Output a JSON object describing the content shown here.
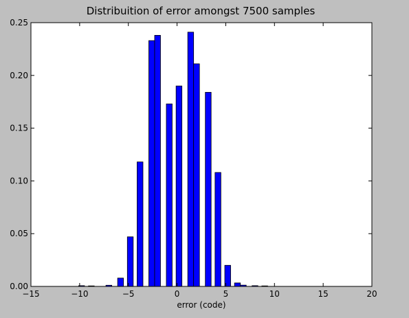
{
  "chart_data": {
    "type": "bar",
    "title": "Distribuition of error amongst 7500 samples",
    "xlabel": "error (code)",
    "ylabel": "",
    "xlim": [
      -15,
      20
    ],
    "ylim": [
      0,
      0.25
    ],
    "xticks": [
      -15,
      -10,
      -5,
      0,
      5,
      10,
      15,
      20
    ],
    "yticks": [
      0.0,
      0.05,
      0.1,
      0.15,
      0.2,
      0.25
    ],
    "xtick_labels": [
      "−15",
      "−10",
      "−5",
      "0",
      "5",
      "10",
      "15",
      "20"
    ],
    "ytick_labels": [
      "0.00",
      "0.05",
      "0.10",
      "0.15",
      "0.20",
      "0.25"
    ],
    "bar_width": 0.6,
    "bar_color": "#0000ff",
    "grid": false,
    "bars": [
      {
        "x": -9.8,
        "y": 0.0007
      },
      {
        "x": -8.8,
        "y": 0.0005
      },
      {
        "x": -7.0,
        "y": 0.0011
      },
      {
        "x": -5.8,
        "y": 0.0079
      },
      {
        "x": -4.8,
        "y": 0.047
      },
      {
        "x": -3.8,
        "y": 0.118
      },
      {
        "x": -2.6,
        "y": 0.233
      },
      {
        "x": -2.0,
        "y": 0.238
      },
      {
        "x": -0.8,
        "y": 0.173
      },
      {
        "x": 0.2,
        "y": 0.19
      },
      {
        "x": 1.4,
        "y": 0.241
      },
      {
        "x": 2.0,
        "y": 0.211
      },
      {
        "x": 3.2,
        "y": 0.184
      },
      {
        "x": 4.2,
        "y": 0.108
      },
      {
        "x": 5.2,
        "y": 0.02
      },
      {
        "x": 6.2,
        "y": 0.0033
      },
      {
        "x": 6.8,
        "y": 0.0012
      },
      {
        "x": 8.0,
        "y": 0.0007
      },
      {
        "x": 9.0,
        "y": 0.0005
      }
    ]
  }
}
